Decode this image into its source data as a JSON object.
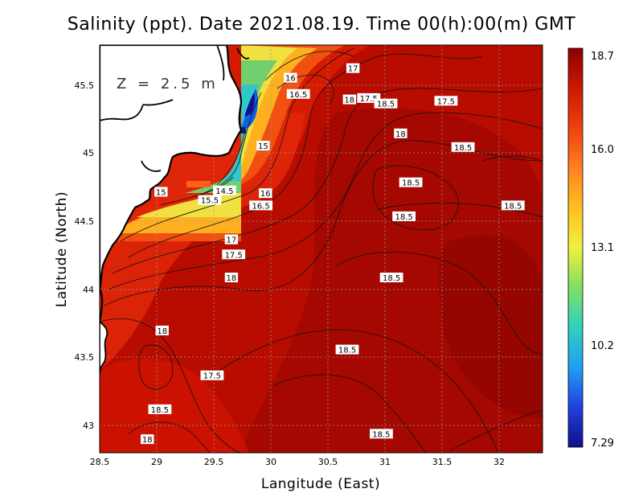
{
  "title": "Salinity (ppt). Date 2021.08.19. Time 00(h):00(m) GMT",
  "depth_label": "Z = 2.5 m",
  "axes": {
    "xlabel": "Langitude (East)",
    "ylabel": "Latitude (North)",
    "xticks": [
      "28.5",
      "29",
      "29.5",
      "30",
      "30.5",
      "31",
      "31.5",
      "32"
    ],
    "yticks": [
      "45.5",
      "45",
      "44.5",
      "44",
      "43.5",
      "43"
    ],
    "xlim": [
      28.5,
      32.4
    ],
    "ylim": [
      42.8,
      45.8
    ]
  },
  "colorbar": {
    "ticks": [
      "18.7",
      "16.0",
      "13.1",
      "10.2",
      "7.29"
    ],
    "colors": [
      "#8b0000",
      "#cc1800",
      "#f04010",
      "#ff8020",
      "#ffc020",
      "#f0f040",
      "#80e060",
      "#30d0c0",
      "#20a0f0",
      "#2040e0",
      "#10108a"
    ]
  },
  "contour_labels": [
    {
      "text": "17",
      "lon": 30.73,
      "lat": 45.63
    },
    {
      "text": "16",
      "lon": 30.18,
      "lat": 45.56
    },
    {
      "text": "16.5",
      "lon": 30.25,
      "lat": 45.44
    },
    {
      "text": "18",
      "lon": 30.7,
      "lat": 45.4
    },
    {
      "text": "17.5",
      "lon": 30.87,
      "lat": 45.41
    },
    {
      "text": "18.5",
      "lon": 31.02,
      "lat": 45.37
    },
    {
      "text": "17.5",
      "lon": 31.55,
      "lat": 45.39
    },
    {
      "text": "18",
      "lon": 31.15,
      "lat": 45.15
    },
    {
      "text": "15",
      "lon": 29.94,
      "lat": 45.06
    },
    {
      "text": "18.5",
      "lon": 31.7,
      "lat": 45.05
    },
    {
      "text": "18.5",
      "lon": 31.24,
      "lat": 44.79
    },
    {
      "text": "15",
      "lon": 29.04,
      "lat": 44.72
    },
    {
      "text": "14.5",
      "lon": 29.6,
      "lat": 44.73
    },
    {
      "text": "16",
      "lon": 29.96,
      "lat": 44.71
    },
    {
      "text": "15.5",
      "lon": 29.47,
      "lat": 44.66
    },
    {
      "text": "16.5",
      "lon": 29.92,
      "lat": 44.62
    },
    {
      "text": "18.5",
      "lon": 32.14,
      "lat": 44.62
    },
    {
      "text": "18.5",
      "lon": 31.18,
      "lat": 44.54
    },
    {
      "text": "17",
      "lon": 29.66,
      "lat": 44.37
    },
    {
      "text": "17.5",
      "lon": 29.68,
      "lat": 44.26
    },
    {
      "text": "18",
      "lon": 29.66,
      "lat": 44.09
    },
    {
      "text": "18.5",
      "lon": 31.07,
      "lat": 44.09
    },
    {
      "text": "18",
      "lon": 29.05,
      "lat": 43.7
    },
    {
      "text": "18.5",
      "lon": 30.68,
      "lat": 43.56
    },
    {
      "text": "17.5",
      "lon": 29.49,
      "lat": 43.37
    },
    {
      "text": "18.5",
      "lon": 29.03,
      "lat": 43.12
    },
    {
      "text": "18.5",
      "lon": 30.98,
      "lat": 42.94
    },
    {
      "text": "18",
      "lon": 28.92,
      "lat": 42.9
    }
  ]
}
